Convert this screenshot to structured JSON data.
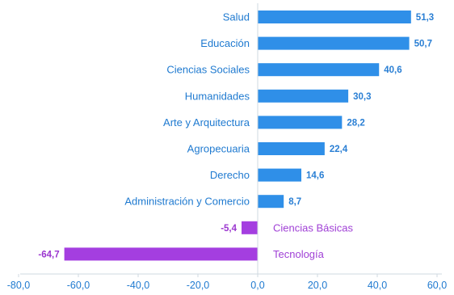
{
  "chart_data": {
    "type": "bar",
    "orientation": "horizontal",
    "categories": [
      "Salud",
      "Educación",
      "Ciencias Sociales",
      "Humanidades",
      "Arte y Arquitectura",
      "Agropecuaria",
      "Derecho",
      "Administración y Comercio",
      "Ciencias Básicas",
      "Tecnología"
    ],
    "values": [
      51.3,
      50.7,
      40.6,
      30.3,
      28.2,
      22.4,
      14.6,
      8.7,
      -5.4,
      -64.7
    ],
    "value_labels": [
      "51,3",
      "50,7",
      "40,6",
      "30,3",
      "28,2",
      "22,4",
      "14,6",
      "8,7",
      "-5,4",
      "-64,7"
    ],
    "xlim": [
      -80,
      60
    ],
    "xticks": [
      -80,
      -60,
      -40,
      -20,
      0,
      20,
      40,
      60
    ],
    "xtick_labels": [
      "-80,0",
      "-60,0",
      "-40,0",
      "-20,0",
      "0,0",
      "20,0",
      "40,0",
      "60,0"
    ],
    "title": "",
    "xlabel": "",
    "ylabel": "",
    "grid": false,
    "colors": {
      "positive": "#2f8fe8",
      "negative": "#a43ee0",
      "positive_label": "#2a7fd4",
      "negative_label": "#9b36cf",
      "category_text": "#1f7ad0",
      "negative_category_text": "#a040d6",
      "axis": "#cfd8e0",
      "tick_text": "#1f7ad0"
    }
  }
}
